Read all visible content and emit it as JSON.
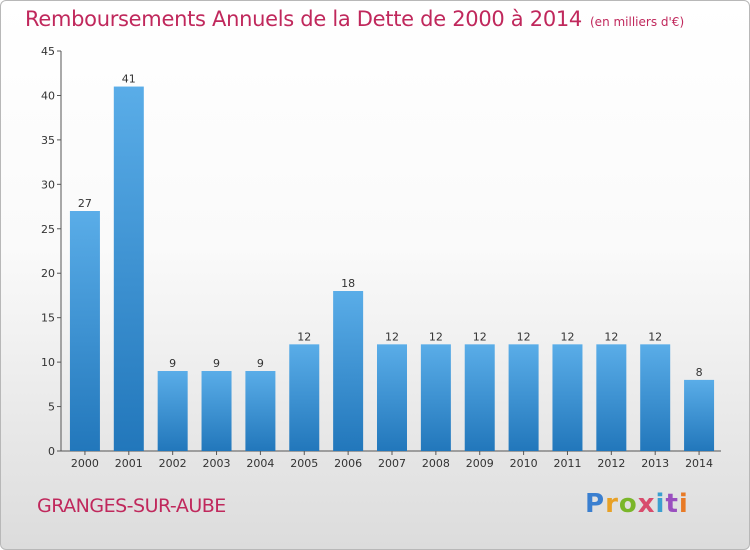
{
  "header": {
    "title": "Remboursements Annuels de la Dette de 2000 à 2014",
    "subtitle": "(en milliers d'€)"
  },
  "footer": {
    "location": "GRANGES-SUR-AUBE",
    "logo_text": "Proxiti"
  },
  "colors": {
    "title": "#c0285c",
    "bar_light": "#5aade8",
    "bar_dark": "#2277bb"
  },
  "chart_data": {
    "type": "bar",
    "title": "Remboursements Annuels de la Dette de 2000 à 2014",
    "subtitle": "(en milliers d'€)",
    "categories": [
      "2000",
      "2001",
      "2002",
      "2003",
      "2004",
      "2005",
      "2006",
      "2007",
      "2008",
      "2009",
      "2010",
      "2011",
      "2012",
      "2013",
      "2014"
    ],
    "values": [
      27,
      41,
      9,
      9,
      9,
      12,
      18,
      12,
      12,
      12,
      12,
      12,
      12,
      12,
      8
    ],
    "ylim": [
      0,
      45
    ],
    "yticks": [
      0,
      5,
      10,
      15,
      20,
      25,
      30,
      35,
      40,
      45
    ],
    "grid": false,
    "data_labels": true
  }
}
